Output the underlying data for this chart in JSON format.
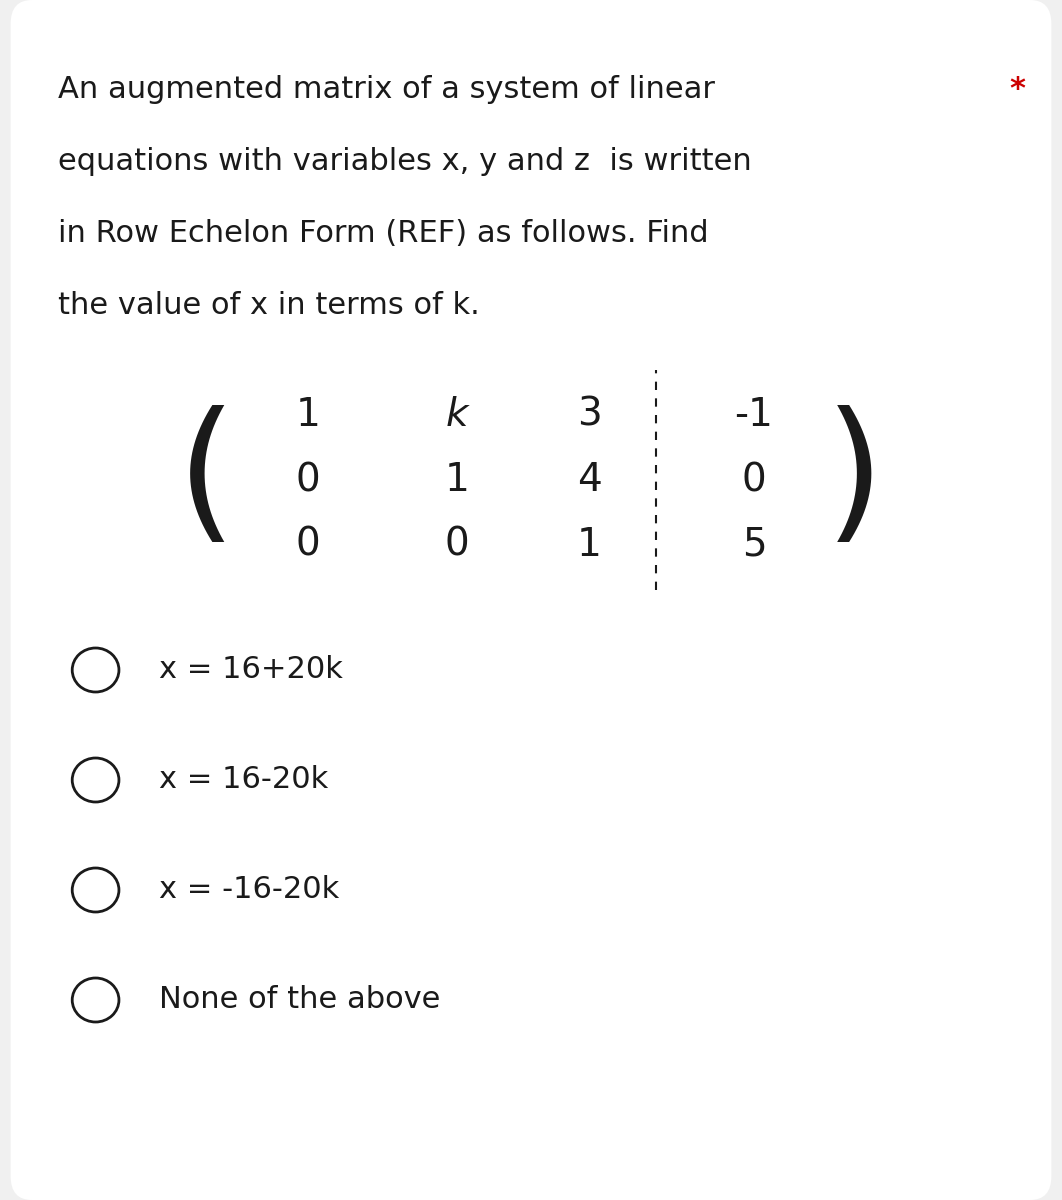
{
  "title_text": "An augmented matrix of a system of linear\nequations with variables x, y and z  is written\nin Row Echelon Form (REF) as follows. Find\nthe value of x in terms of k.",
  "star_text": "*",
  "matrix_rows": [
    [
      "1",
      "k",
      "3",
      "-1"
    ],
    [
      "0",
      "1",
      "4",
      "0"
    ],
    [
      "0",
      "0",
      "1",
      "5"
    ]
  ],
  "options": [
    "x = 16+20k",
    "x = 16-20k",
    "x = -16-20k",
    "None of the above"
  ],
  "bg_color": "#f0f0f0",
  "card_color": "#ffffff",
  "text_color": "#1a1a1a",
  "star_color": "#cc0000",
  "font_size_title": 22,
  "font_size_matrix": 28,
  "font_size_options": 22
}
